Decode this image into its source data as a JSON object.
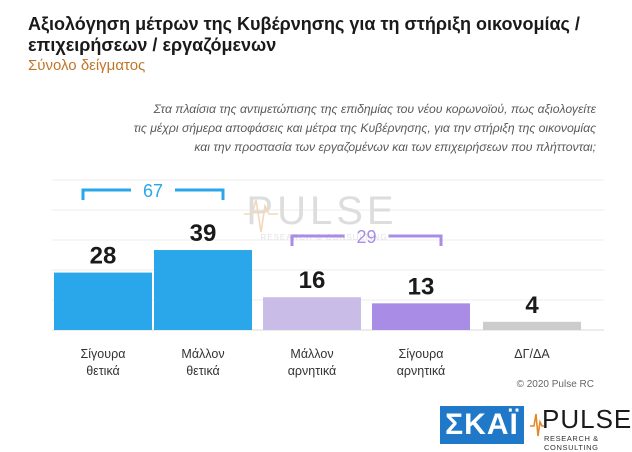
{
  "header": {
    "title": "Αξιολόγηση μέτρων της Κυβέρνησης για τη στήριξη οικονομίας / επιχειρήσεων / εργαζόμενων",
    "subtitle": "Σύνολο δείγματος"
  },
  "question": "Στα πλαίσια της αντιμετώπισης της επιδημίας του νέου κορωνοϊού, πως αξιολογείτε\nτις μέχρι σήμερα αποφάσεις και μέτρα της Κυβέρνησης, για την στήριξη της οικονομίας\nκαι την προστασία των εργαζομένων και των επιχειρήσεων που πλήττονται;",
  "chart_data": {
    "type": "bar",
    "categories": [
      [
        "Σίγουρα",
        "θετικά"
      ],
      [
        "Μάλλον",
        "θετικά"
      ],
      [
        "Μάλλον",
        "αρνητικά"
      ],
      [
        "Σίγουρα",
        "αρνητικά"
      ],
      [
        "ΔΓ/ΔΑ"
      ]
    ],
    "values": [
      28,
      39,
      16,
      13,
      4
    ],
    "colors": [
      "#29a7ea",
      "#29a7ea",
      "#c9bde8",
      "#a98ce6",
      "#cccccc"
    ],
    "ylim": [
      0,
      50
    ],
    "grid": true,
    "brackets": [
      {
        "label": "67",
        "from": 0,
        "to": 1,
        "color": "#29a7ea"
      },
      {
        "label": "29",
        "from": 2,
        "to": 3,
        "color": "#a98ce6"
      }
    ]
  },
  "watermark": {
    "name": "PULSE",
    "tagline": "RESEARCH & CONSULTING"
  },
  "footer": {
    "copyright": "© 2020 Pulse RC",
    "skai_logo": "ΣΚΑΪ",
    "pulse_logo": "PULSE",
    "pulse_tagline": "RESEARCH & CONSULTING"
  }
}
